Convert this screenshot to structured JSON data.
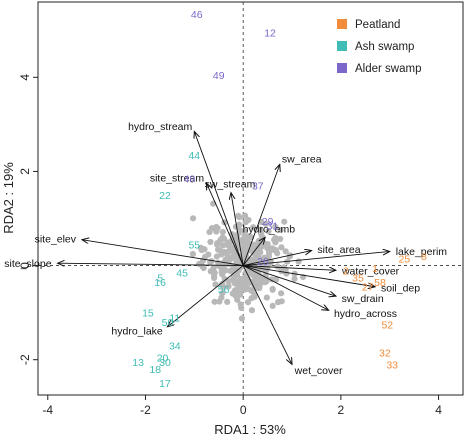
{
  "chart_data": {
    "type": "scatter",
    "xlabel": "RDA1 : 53%",
    "ylabel": "RDA2 : 19%",
    "xlim": [
      -4.2,
      4.5
    ],
    "ylim": [
      -2.75,
      5.6
    ],
    "x_ticks": [
      "-4",
      "-2",
      "0",
      "2",
      "4"
    ],
    "x_tick_values": [
      -4,
      -2,
      0,
      2,
      4
    ],
    "y_ticks": [
      "-2",
      "0",
      "2",
      "4"
    ],
    "y_tick_values": [
      -2,
      0,
      2,
      4
    ],
    "reference_lines": {
      "x": 0,
      "y": 0,
      "style": "dashed"
    },
    "colors": {
      "Peatland": "#f08c3a",
      "Ash swamp": "#3fbcb4",
      "Alder swamp": "#7b66c9",
      "background_points": "#b8b8b8",
      "arrows": "#111111"
    },
    "legend": {
      "position": "top-right",
      "entries": [
        "Peatland",
        "Ash swamp",
        "Alder swamp"
      ]
    },
    "arrows": [
      {
        "label": "hydro_stream",
        "x": -1.0,
        "y": 2.85
      },
      {
        "label": "site_stream",
        "x": -0.75,
        "y": 1.75
      },
      {
        "label": "sw_stream",
        "x": -0.25,
        "y": 1.55
      },
      {
        "label": "sw_area",
        "x": 0.75,
        "y": 2.15
      },
      {
        "label": "site_elev",
        "x": -3.3,
        "y": 0.55
      },
      {
        "label": "site_slope",
        "x": -3.8,
        "y": 0.05
      },
      {
        "label": "hydro_emb",
        "x": 0.45,
        "y": 0.6
      },
      {
        "label": "site_area",
        "x": 1.4,
        "y": 0.32
      },
      {
        "label": "lake_perim",
        "x": 3.0,
        "y": 0.3
      },
      {
        "label": "water_cover",
        "x": 1.9,
        "y": -0.1
      },
      {
        "label": "soil_dep",
        "x": 2.7,
        "y": -0.45
      },
      {
        "label": "sw_drain",
        "x": 1.9,
        "y": -0.65
      },
      {
        "label": "hydro_across",
        "x": 1.75,
        "y": -0.95
      },
      {
        "label": "hydro_lake",
        "x": -1.55,
        "y": -1.3
      },
      {
        "label": "wet_cover",
        "x": 1.0,
        "y": -2.1
      }
    ],
    "sites": [
      {
        "label": "46",
        "group": "Alder swamp",
        "x": -0.95,
        "y": 5.35
      },
      {
        "label": "12",
        "group": "Alder swamp",
        "x": 0.55,
        "y": 4.95
      },
      {
        "label": "49",
        "group": "Alder swamp",
        "x": -0.5,
        "y": 4.05
      },
      {
        "label": "48",
        "group": "Alder swamp",
        "x": -1.1,
        "y": 1.85
      },
      {
        "label": "37",
        "group": "Alder swamp",
        "x": 0.3,
        "y": 1.7
      },
      {
        "label": "29",
        "group": "Alder swamp",
        "x": 0.5,
        "y": 0.95
      },
      {
        "label": "31",
        "group": "Alder swamp",
        "x": 0.6,
        "y": 0.85
      },
      {
        "label": "26",
        "group": "Alder swamp",
        "x": 0.4,
        "y": 0.1
      },
      {
        "label": "44",
        "group": "Ash swamp",
        "x": -1.0,
        "y": 2.35
      },
      {
        "label": "22",
        "group": "Ash swamp",
        "x": -1.6,
        "y": 1.5
      },
      {
        "label": "55",
        "group": "Ash swamp",
        "x": -1.0,
        "y": 0.45
      },
      {
        "label": "45",
        "group": "Ash swamp",
        "x": -1.25,
        "y": -0.15
      },
      {
        "label": "5",
        "group": "Ash swamp",
        "x": -1.7,
        "y": -0.25
      },
      {
        "label": "16",
        "group": "Ash swamp",
        "x": -1.7,
        "y": -0.35
      },
      {
        "label": "56",
        "group": "Ash swamp",
        "x": -0.4,
        "y": -0.5
      },
      {
        "label": "15",
        "group": "Ash swamp",
        "x": -1.95,
        "y": -1.0
      },
      {
        "label": "11",
        "group": "Ash swamp",
        "x": -1.4,
        "y": -1.1
      },
      {
        "label": "50",
        "group": "Ash swamp",
        "x": -1.55,
        "y": -1.2
      },
      {
        "label": "34",
        "group": "Ash swamp",
        "x": -1.4,
        "y": -1.7
      },
      {
        "label": "20",
        "group": "Ash swamp",
        "x": -1.65,
        "y": -1.95
      },
      {
        "label": "13",
        "group": "Ash swamp",
        "x": -2.15,
        "y": -2.05
      },
      {
        "label": "30",
        "group": "Ash swamp",
        "x": -1.6,
        "y": -2.05
      },
      {
        "label": "18",
        "group": "Ash swamp",
        "x": -1.8,
        "y": -2.2
      },
      {
        "label": "17",
        "group": "Ash swamp",
        "x": -1.6,
        "y": -2.5
      },
      {
        "label": "8",
        "group": "Peatland",
        "x": 3.7,
        "y": 0.2
      },
      {
        "label": "25",
        "group": "Peatland",
        "x": 3.3,
        "y": 0.15
      },
      {
        "label": "2",
        "group": "Peatland",
        "x": 2.1,
        "y": -0.1
      },
      {
        "label": "35",
        "group": "Peatland",
        "x": 2.35,
        "y": -0.25
      },
      {
        "label": "1",
        "group": "Peatland",
        "x": 2.7,
        "y": -0.05
      },
      {
        "label": "58",
        "group": "Peatland",
        "x": 2.8,
        "y": -0.35
      },
      {
        "label": "27",
        "group": "Peatland",
        "x": 2.55,
        "y": -0.45
      },
      {
        "label": "52",
        "group": "Peatland",
        "x": 2.95,
        "y": -1.25
      },
      {
        "label": "32",
        "group": "Peatland",
        "x": 2.9,
        "y": -1.85
      },
      {
        "label": "33",
        "group": "Peatland",
        "x": 3.05,
        "y": -2.1
      }
    ]
  }
}
